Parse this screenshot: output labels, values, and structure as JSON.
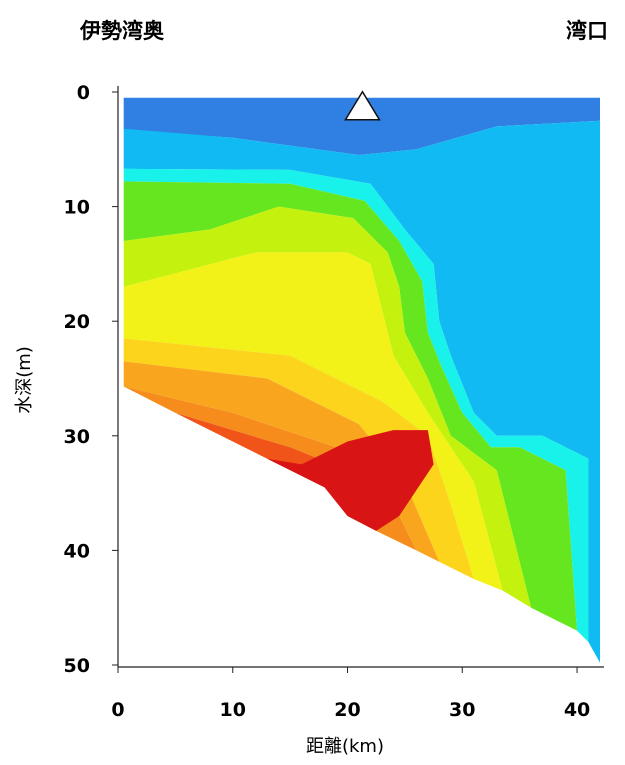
{
  "chart_data": {
    "type": "heatmap",
    "title": "",
    "corner_labels": {
      "left": "伊勢湾奥",
      "right": "湾口"
    },
    "xlabel": "距離(km)",
    "ylabel": "水深(m)",
    "xlim": [
      0,
      42
    ],
    "ylim": [
      50,
      0
    ],
    "xticks": [
      0,
      10,
      20,
      30,
      40
    ],
    "yticks": [
      0,
      10,
      20,
      30,
      40,
      50
    ],
    "marker": {
      "shape": "triangle",
      "x": 21.3,
      "y": 1.2,
      "color": "#ffffff"
    },
    "bottom_boundary": [
      [
        0.5,
        25.7
      ],
      [
        42,
        49.8
      ]
    ],
    "colors": {
      "deep_blue": "#2f80e2",
      "sky_blue": "#11baf2",
      "cyan": "#19f2ea",
      "teal_green": "#30e08a",
      "green": "#66e61e",
      "yellow_green": "#c4f20e",
      "yellow": "#f2f218",
      "yellow_orange": "#fcd41c",
      "orange_light": "#f9a61e",
      "orange": "#f58c1c",
      "red_orange": "#f05418",
      "red": "#d81414"
    },
    "regions": [
      {
        "name": "surface-mixed-layer",
        "color": "deep_blue",
        "points": [
          [
            0.5,
            0.5
          ],
          [
            42,
            0.5
          ],
          [
            42,
            2.5
          ],
          [
            33,
            3
          ],
          [
            26,
            5
          ],
          [
            21,
            5.5
          ],
          [
            10,
            4
          ],
          [
            0.5,
            3.3
          ]
        ]
      },
      {
        "name": "bay-mouth-water",
        "color": "sky_blue",
        "points": [
          [
            0.5,
            3.2
          ],
          [
            10,
            4
          ],
          [
            21,
            5.5
          ],
          [
            26,
            5
          ],
          [
            33,
            3
          ],
          [
            42,
            2.5
          ],
          [
            42,
            49.8
          ],
          [
            41,
            48
          ],
          [
            41,
            32
          ],
          [
            37,
            30
          ],
          [
            33,
            30
          ],
          [
            31,
            28
          ],
          [
            29,
            23
          ],
          [
            28,
            20
          ],
          [
            27.5,
            15
          ],
          [
            25,
            12
          ],
          [
            22,
            8
          ],
          [
            15,
            6.8
          ],
          [
            0.5,
            6.7
          ]
        ]
      },
      {
        "name": "cyan-band",
        "color": "cyan",
        "points": [
          [
            0.5,
            6.7
          ],
          [
            15,
            6.8
          ],
          [
            22,
            8
          ],
          [
            25,
            12
          ],
          [
            27.5,
            15
          ],
          [
            28,
            20
          ],
          [
            29,
            23
          ],
          [
            31,
            28
          ],
          [
            33,
            30
          ],
          [
            37,
            30
          ],
          [
            41,
            32
          ],
          [
            41,
            48
          ],
          [
            40,
            47
          ],
          [
            39,
            33
          ],
          [
            35,
            31
          ],
          [
            32.5,
            31
          ],
          [
            30,
            28
          ],
          [
            28.2,
            24
          ],
          [
            27,
            21
          ],
          [
            26.5,
            16.5
          ],
          [
            24.5,
            13
          ],
          [
            21.5,
            9.5
          ],
          [
            15,
            8
          ],
          [
            0.5,
            7.8
          ]
        ]
      },
      {
        "name": "green-band",
        "color": "green",
        "points": [
          [
            0.5,
            7.8
          ],
          [
            15,
            8
          ],
          [
            21.5,
            9.5
          ],
          [
            24.5,
            13
          ],
          [
            26.5,
            16.5
          ],
          [
            27,
            21
          ],
          [
            28.2,
            24
          ],
          [
            30,
            28
          ],
          [
            32.5,
            31
          ],
          [
            35,
            31
          ],
          [
            39,
            33
          ],
          [
            40,
            47
          ],
          [
            36,
            45
          ],
          [
            33,
            33
          ],
          [
            29,
            30
          ],
          [
            27,
            25
          ],
          [
            25,
            21
          ],
          [
            24.5,
            17
          ],
          [
            23.5,
            14
          ],
          [
            20.5,
            11
          ],
          [
            14,
            10
          ],
          [
            8,
            12
          ],
          [
            0.5,
            13
          ]
        ]
      },
      {
        "name": "yellow-green-band",
        "color": "yellow_green",
        "points": [
          [
            0.5,
            13
          ],
          [
            8,
            12
          ],
          [
            14,
            10
          ],
          [
            20.5,
            11
          ],
          [
            23.5,
            14
          ],
          [
            24.5,
            17
          ],
          [
            25,
            21
          ],
          [
            27,
            25
          ],
          [
            29,
            30
          ],
          [
            33,
            33
          ],
          [
            36,
            45
          ],
          [
            33.5,
            43.5
          ],
          [
            31,
            34
          ],
          [
            27,
            28
          ],
          [
            24,
            23
          ],
          [
            23,
            19
          ],
          [
            22,
            15
          ],
          [
            20,
            14
          ],
          [
            12,
            14
          ],
          [
            0.5,
            17
          ]
        ]
      },
      {
        "name": "yellow-core",
        "color": "yellow",
        "points": [
          [
            0.5,
            17
          ],
          [
            12,
            14
          ],
          [
            20,
            14
          ],
          [
            22,
            15
          ],
          [
            23,
            19
          ],
          [
            24,
            23
          ],
          [
            27,
            28
          ],
          [
            31,
            34
          ],
          [
            33.5,
            43.5
          ],
          [
            31,
            42.5
          ],
          [
            29,
            36
          ],
          [
            27,
            30
          ],
          [
            23,
            27
          ],
          [
            15,
            23
          ],
          [
            0.5,
            21.5
          ]
        ]
      },
      {
        "name": "light-orange-band",
        "color": "yellow_orange",
        "points": [
          [
            0.5,
            21.5
          ],
          [
            15,
            23
          ],
          [
            23,
            27
          ],
          [
            27,
            30
          ],
          [
            29,
            36
          ],
          [
            31,
            42.5
          ],
          [
            28,
            41
          ],
          [
            25,
            34
          ],
          [
            21,
            29
          ],
          [
            13,
            25
          ],
          [
            0.5,
            23.5
          ]
        ]
      },
      {
        "name": "orange-band",
        "color": "orange_light",
        "points": [
          [
            0.5,
            23.5
          ],
          [
            13,
            25
          ],
          [
            21,
            29
          ],
          [
            25,
            34
          ],
          [
            28,
            41
          ],
          [
            26,
            40
          ],
          [
            23,
            34
          ],
          [
            19,
            31
          ],
          [
            10,
            28
          ],
          [
            0.5,
            25.7
          ]
        ]
      },
      {
        "name": "dark-orange-band",
        "color": "orange",
        "points": [
          [
            0.5,
            25.7
          ],
          [
            10,
            28
          ],
          [
            19,
            31
          ],
          [
            23,
            34
          ],
          [
            26,
            40
          ],
          [
            22.5,
            38.3
          ],
          [
            20,
            33
          ],
          [
            15,
            31
          ],
          [
            5,
            28
          ]
        ]
      },
      {
        "name": "red-orange-band",
        "color": "red_orange",
        "points": [
          [
            5,
            28
          ],
          [
            15,
            31
          ],
          [
            20,
            33
          ],
          [
            22.5,
            38.3
          ],
          [
            20,
            37
          ],
          [
            18,
            34.5
          ],
          [
            13,
            32
          ]
        ]
      },
      {
        "name": "hypoxic-core",
        "color": "red",
        "points": [
          [
            13,
            32
          ],
          [
            18,
            34.5
          ],
          [
            20,
            37
          ],
          [
            22.5,
            38.3
          ],
          [
            24.5,
            37
          ],
          [
            26.5,
            34
          ],
          [
            27.5,
            32.5
          ],
          [
            27,
            29.5
          ],
          [
            24,
            29.5
          ],
          [
            20,
            30.5
          ],
          [
            16,
            32.5
          ]
        ]
      }
    ]
  }
}
